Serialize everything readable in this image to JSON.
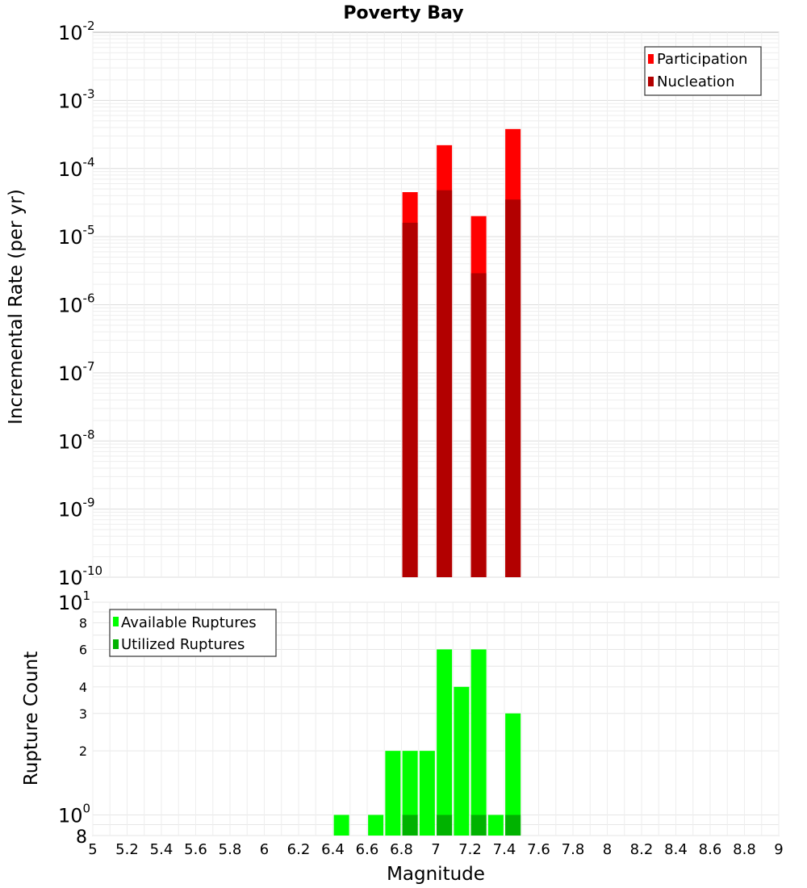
{
  "chart_data": [
    {
      "type": "bar",
      "title": "Poverty Bay",
      "xlabel": "",
      "ylabel": "Incremental Rate (per yr)",
      "yscale": "log",
      "ylim": [
        1e-10,
        0.01
      ],
      "xlim": [
        5,
        9
      ],
      "y_ticks": [
        {
          "base": "10",
          "exp": "-10"
        },
        {
          "base": "10",
          "exp": "-9"
        },
        {
          "base": "10",
          "exp": "-8"
        },
        {
          "base": "10",
          "exp": "-7"
        },
        {
          "base": "10",
          "exp": "-6"
        },
        {
          "base": "10",
          "exp": "-5"
        },
        {
          "base": "10",
          "exp": "-4"
        },
        {
          "base": "10",
          "exp": "-3"
        },
        {
          "base": "10",
          "exp": "-2"
        }
      ],
      "grid": true,
      "legend_position": "top-right",
      "categories": [
        6.85,
        7.05,
        7.25,
        7.45
      ],
      "series": [
        {
          "name": "Participation",
          "color": "#ff0000",
          "values": [
            4.5e-05,
            0.00022,
            2e-05,
            0.00038
          ]
        },
        {
          "name": "Nucleation",
          "color": "#b20000",
          "values": [
            1.6e-05,
            4.8e-05,
            2.9e-06,
            3.5e-05
          ]
        }
      ]
    },
    {
      "type": "bar",
      "title": "",
      "xlabel": "Magnitude",
      "ylabel": "Rupture Count",
      "yscale": "log",
      "ylim": [
        0.8,
        10
      ],
      "xlim": [
        5,
        9
      ],
      "x_ticks": [
        "5",
        "5.2",
        "5.4",
        "5.6",
        "5.8",
        "6",
        "6.2",
        "6.4",
        "6.6",
        "6.8",
        "7",
        "7.2",
        "7.4",
        "7.6",
        "7.8",
        "8",
        "8.2",
        "8.4",
        "8.6",
        "8.8",
        "9"
      ],
      "y_ticks_minor": [
        "8",
        "6",
        "4",
        "3",
        "2"
      ],
      "y_ticks_major": [
        {
          "base": "10",
          "exp": "1"
        },
        {
          "base": "10",
          "exp": "0"
        }
      ],
      "y_bottom_tick": "8",
      "grid": true,
      "legend_position": "top-left",
      "categories": [
        6.45,
        6.65,
        6.75,
        6.85,
        6.95,
        7.05,
        7.15,
        7.25,
        7.35,
        7.45
      ],
      "series": [
        {
          "name": "Available Ruptures",
          "color": "#00ff00",
          "values": [
            1,
            1,
            2,
            2,
            2,
            6,
            4,
            6,
            1,
            3
          ]
        },
        {
          "name": "Utilized Ruptures",
          "color": "#00b200",
          "values": [
            0,
            0,
            0,
            1,
            0,
            1,
            0,
            1,
            0,
            1
          ]
        }
      ]
    }
  ]
}
